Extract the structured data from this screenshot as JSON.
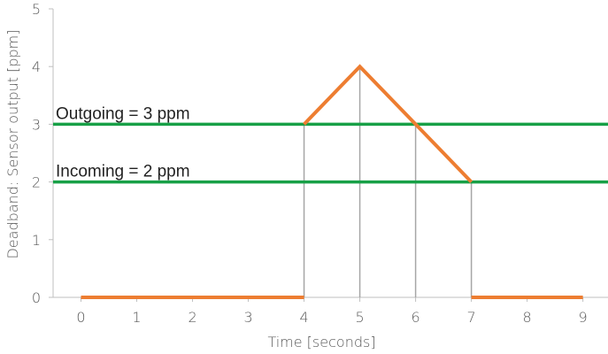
{
  "chart_data": {
    "type": "line",
    "xlabel": "Time [seconds]",
    "ylabel": "Deadband: Sensor output [ppm]",
    "xlim": [
      -0.5,
      9.45
    ],
    "ylim": [
      0,
      5
    ],
    "x_ticks": [
      0,
      1,
      2,
      3,
      4,
      5,
      6,
      7,
      8,
      9
    ],
    "y_ticks": [
      0,
      1,
      2,
      3,
      4,
      5
    ],
    "grid": false,
    "series": [
      {
        "name": "",
        "color": "#ED7D31",
        "segments": [
          [
            {
              "x": 0,
              "y": 0
            },
            {
              "x": 4,
              "y": 0
            }
          ],
          [
            {
              "x": 4,
              "y": 3
            },
            {
              "x": 5,
              "y": 4
            },
            {
              "x": 6,
              "y": 3
            },
            {
              "x": 7,
              "y": 2
            }
          ],
          [
            {
              "x": 7,
              "y": 0
            },
            {
              "x": 9,
              "y": 0
            }
          ]
        ]
      }
    ],
    "drop_lines": [
      {
        "x": 4,
        "y": 3
      },
      {
        "x": 5,
        "y": 4
      },
      {
        "x": 6,
        "y": 3
      },
      {
        "x": 7,
        "y": 2
      }
    ],
    "drop_line_color": "#A6A6A6",
    "thresholds": [
      {
        "label": "Outgoing = 3 ppm",
        "y": 3,
        "color": "#18A047"
      },
      {
        "label": "Incoming = 2 ppm",
        "y": 2,
        "color": "#18A047"
      }
    ],
    "axis_color": "#BFBFBF"
  }
}
